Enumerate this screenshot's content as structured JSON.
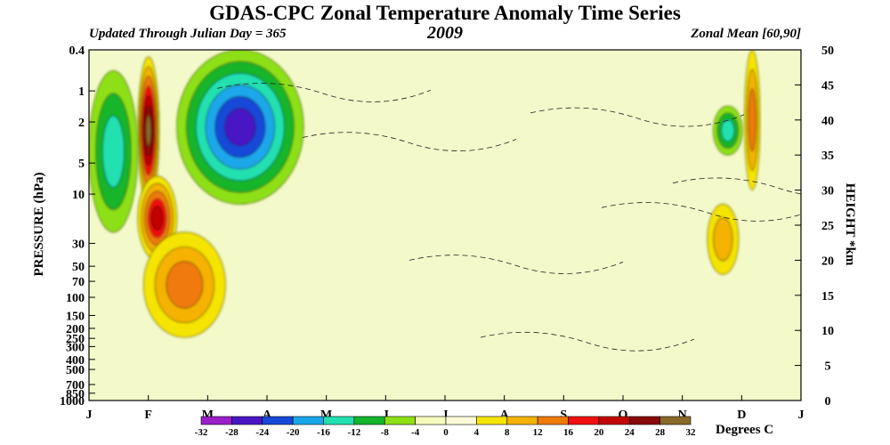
{
  "chart_data": {
    "type": "heatmap",
    "title": "GDAS-CPC Zonal Temperature Anomaly Time Series",
    "subtitle_left": "Updated Through Julian Day = 365",
    "subtitle_center": "2009",
    "subtitle_right": "Zonal Mean [60,90]",
    "ylabel_left": "PRESSURE (hPa)",
    "ylabel_right": "HEIGHT *km",
    "pressure_ticks": [
      0.4,
      1,
      2,
      5,
      10,
      30,
      50,
      70,
      100,
      150,
      200,
      250,
      300,
      400,
      500,
      700,
      850,
      1000
    ],
    "pressure_tick_labels": [
      "0.4",
      "1",
      "2",
      "5",
      "10",
      "30",
      "50",
      "70",
      "100",
      "150",
      "200",
      "250",
      "300",
      "400",
      "500",
      "700",
      "850",
      "1000"
    ],
    "height_ticks": [
      0,
      5,
      10,
      15,
      20,
      25,
      30,
      35,
      40,
      45,
      50
    ],
    "height_range_km": [
      0,
      50
    ],
    "month_labels": [
      "J",
      "F",
      "M",
      "A",
      "M",
      "J",
      "J",
      "A",
      "S",
      "O",
      "N",
      "D",
      "J"
    ],
    "time_range_days": [
      0,
      365
    ],
    "colorbar": {
      "label": "Degrees C",
      "ticks": [
        -32,
        -28,
        -24,
        -20,
        -16,
        -12,
        -8,
        -4,
        0,
        4,
        8,
        12,
        16,
        20,
        24,
        28,
        32
      ],
      "colors": [
        "#9b1fc9",
        "#4a16c4",
        "#1848d8",
        "#1aa7ea",
        "#22e0b0",
        "#12b52c",
        "#8ee014",
        "#f6fbbc",
        "#fffbd8",
        "#f5e400",
        "#f5b200",
        "#f07a08",
        "#f01010",
        "#c20606",
        "#880a0a",
        "#8a6a2a"
      ]
    },
    "anomaly_features": [
      {
        "type": "warm",
        "peak_c": 28,
        "day_range": [
          25,
          36
        ],
        "height_km": [
          28,
          49
        ]
      },
      {
        "type": "warm",
        "peak_c": 20,
        "day_range": [
          25,
          45
        ],
        "height_km": [
          20,
          32
        ]
      },
      {
        "type": "warm",
        "peak_c": 12,
        "day_range": [
          28,
          70
        ],
        "height_km": [
          9,
          24
        ]
      },
      {
        "type": "cold",
        "peak_c": -24,
        "day_range": [
          45,
          110
        ],
        "height_km": [
          28,
          50
        ]
      },
      {
        "type": "cold",
        "peak_c": -12,
        "day_range": [
          0,
          25
        ],
        "height_km": [
          24,
          47
        ]
      },
      {
        "type": "cold",
        "peak_c": -12,
        "day_range": [
          320,
          335
        ],
        "height_km": [
          35,
          42
        ]
      },
      {
        "type": "warm",
        "peak_c": 8,
        "day_range": [
          317,
          333
        ],
        "height_km": [
          18,
          28
        ]
      },
      {
        "type": "warm",
        "peak_c": 12,
        "day_range": [
          336,
          344
        ],
        "height_km": [
          30,
          50
        ]
      }
    ]
  }
}
